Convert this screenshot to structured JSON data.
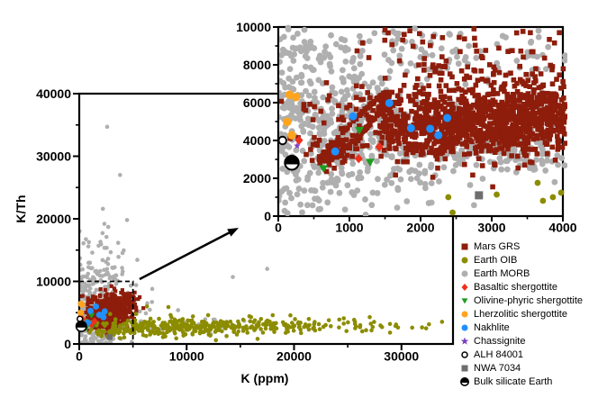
{
  "figure": {
    "legend": {
      "items": [
        {
          "label": "Mars GRS",
          "marker": "square",
          "color": "#8E1D0B"
        },
        {
          "label": "Earth OIB",
          "marker": "circle",
          "color": "#8C8C00"
        },
        {
          "label": "Earth MORB",
          "marker": "circle",
          "color": "#AFAFAF"
        },
        {
          "label": "Basaltic shergottite",
          "marker": "diamond",
          "color": "#ED301C"
        },
        {
          "label": "Olivine-phyric shergottite",
          "marker": "triangle-down",
          "color": "#1E9C20"
        },
        {
          "label": "Lherzolitic shergottite",
          "marker": "circle",
          "color": "#FFA41E"
        },
        {
          "label": "Nakhlite",
          "marker": "circle",
          "color": "#1E90FF"
        },
        {
          "label": "Chassignite",
          "marker": "star",
          "color": "#7C3FC4"
        },
        {
          "label": "ALH 84001",
          "marker": "open-circle",
          "color": "#000000"
        },
        {
          "label": "NWA 7034",
          "marker": "square",
          "color": "#6E6E6E"
        },
        {
          "label": "Bulk silicate Earth",
          "marker": "half-circle",
          "color": "#000000"
        }
      ]
    }
  },
  "chart_data": {
    "type": "scatter",
    "seed": 20240613,
    "cluster_format": "[n, cx, cy, sigma_x, sigma_y] gaussian cloud in data units",
    "ring_format": "[n, cx, cy, A, B, phase, jitter] tilted ellipse ring in data units",
    "panels": {
      "main": {
        "xlabel": "K (ppm)",
        "ylabel": "K/Th",
        "xlim": [
          0,
          34800
        ],
        "ylim": [
          0,
          40000
        ],
        "x_ticks": [
          0,
          10000,
          20000,
          30000
        ],
        "y_ticks": [
          0,
          10000,
          20000,
          30000,
          40000
        ],
        "x_minor_step": 5000,
        "y_minor_step": 5000,
        "zoom_box": {
          "x": [
            0,
            5000
          ],
          "y": [
            0,
            10000
          ]
        }
      },
      "inset": {
        "xlabel": "",
        "ylabel": "",
        "xlim": [
          0,
          4000
        ],
        "ylim": [
          0,
          10000
        ],
        "x_ticks": [
          0,
          1000,
          2000,
          3000,
          4000
        ],
        "y_ticks": [
          0,
          2000,
          4000,
          6000,
          8000,
          10000
        ],
        "x_minor_step": 500,
        "y_minor_step": 1000
      }
    },
    "series": [
      {
        "name": "Earth MORB",
        "marker": "circle",
        "color": "#AFAFAF",
        "layer": "cloud",
        "main": {
          "size": 4.6,
          "clusters": [
            [
              300,
              1500,
              4200,
              1150,
              2600
            ],
            [
              90,
              1700,
              10500,
              1200,
              2200
            ],
            [
              18,
              2400,
              15800,
              1400,
              1200
            ],
            [
              30,
              8500,
              2900,
              3800,
              700
            ],
            [
              12,
              4800,
              6500,
              1500,
              1500
            ]
          ],
          "points": [
            [
              2600,
              34700
            ],
            [
              3800,
              27000
            ],
            [
              2200,
              21600
            ],
            [
              4450,
              19800
            ],
            [
              2700,
              18700
            ],
            [
              14300,
              10700
            ],
            [
              17500,
              12000
            ],
            [
              6800,
              8800
            ],
            [
              5300,
              9400
            ],
            [
              6200,
              4900
            ],
            [
              9200,
              5400
            ],
            [
              12500,
              3900
            ]
          ]
        },
        "inset": {
          "size": 6.8,
          "clusters": [
            [
              400,
              850,
              4800,
              620,
              1750
            ],
            [
              130,
              2000,
              3900,
              850,
              950
            ],
            [
              70,
              2950,
              3400,
              650,
              650
            ],
            [
              45,
              3650,
              3300,
              350,
              700
            ],
            [
              55,
              1100,
              8700,
              650,
              750
            ],
            [
              45,
              2500,
              8300,
              800,
              800
            ],
            [
              25,
              450,
              1100,
              350,
              650
            ],
            [
              25,
              1500,
              1400,
              550,
              550
            ],
            [
              20,
              3300,
              8800,
              500,
              600
            ],
            [
              18,
              350,
              8800,
              280,
              700
            ]
          ],
          "points": []
        }
      },
      {
        "name": "Mars GRS",
        "marker": "square",
        "color": "#8E1D0B",
        "layer": "cloud",
        "main": {
          "size": 4.2,
          "clusters": [
            [
              420,
              3000,
              5600,
              1050,
              1250
            ],
            [
              160,
              2100,
              4300,
              650,
              900
            ],
            [
              60,
              4200,
              6500,
              700,
              900
            ]
          ],
          "points": []
        },
        "inset": {
          "size": 5.6,
          "clusters": [
            [
              800,
              2700,
              5000,
              850,
              1000
            ],
            [
              260,
              3500,
              5300,
              450,
              850
            ],
            [
              120,
              2000,
              4500,
              400,
              700
            ],
            [
              60,
              2700,
              7800,
              800,
              600
            ],
            [
              25,
              2500,
              9300,
              700,
              400
            ],
            [
              60,
              750,
              3400,
              160,
              420
            ]
          ],
          "ring": [
            150,
            1120,
            4750,
            430,
            1700,
            1.25,
            0.22
          ],
          "points": [
            [
              3150,
              3570
            ],
            [
              280,
              4150
            ],
            [
              3950,
              9700
            ],
            [
              2750,
              9900
            ],
            [
              1850,
              9800
            ]
          ]
        }
      },
      {
        "name": "Earth OIB",
        "marker": "circle",
        "color": "#8C8C00",
        "layer": "cloud",
        "main": {
          "size": 4.6,
          "clusters": [
            [
              260,
              9500,
              2800,
              4200,
              650
            ],
            [
              80,
              18500,
              2900,
              3000,
              600
            ],
            [
              30,
              26000,
              2900,
              2800,
              500
            ],
            [
              45,
              4000,
              2000,
              1600,
              500
            ]
          ],
          "points": [
            [
              6300,
              6000
            ],
            [
              8300,
              5900
            ],
            [
              5300,
              4800
            ],
            [
              31000,
              2600
            ],
            [
              32300,
              2500
            ],
            [
              29500,
              3100
            ],
            [
              12000,
              4600
            ],
            [
              16000,
              4300
            ]
          ]
        },
        "inset": {
          "size": 6.8,
          "points": [
            [
              2390,
              1000
            ],
            [
              2450,
              190
            ],
            [
              3070,
              1140
            ],
            [
              3645,
              1760
            ],
            [
              3720,
              810
            ],
            [
              3860,
              1000
            ],
            [
              3975,
              1240
            ]
          ]
        }
      },
      {
        "name": "NWA 7034",
        "marker": "square",
        "color": "#6E6E6E",
        "layer": "sample",
        "main": {
          "size": 6.5,
          "points": [
            [
              2820,
              1100
            ]
          ]
        },
        "inset": {
          "size": 9,
          "points": [
            [
              2820,
              1100
            ]
          ]
        }
      },
      {
        "name": "Chassignite",
        "marker": "star",
        "color": "#7C3FC4",
        "layer": "sample",
        "main": {
          "size": 7,
          "points": [
            [
              265,
              3720
            ]
          ]
        },
        "inset": {
          "size": 8,
          "points": [
            [
              265,
              3720
            ]
          ]
        }
      },
      {
        "name": "Lherzolitic shergottite",
        "marker": "circle",
        "color": "#FFA41E",
        "layer": "sample",
        "main": {
          "size": 7,
          "points": [
            [
              160,
              6420
            ],
            [
              250,
              6300
            ],
            [
              125,
              4980
            ],
            [
              190,
              4280
            ]
          ]
        },
        "inset": {
          "size": 9.5,
          "points": [
            [
              160,
              6420
            ],
            [
              250,
              6300
            ],
            [
              125,
              4980
            ],
            [
              190,
              4280
            ]
          ]
        }
      },
      {
        "name": "Olivine-phyric shergottite",
        "marker": "triangle-down",
        "color": "#1E9C20",
        "layer": "sample",
        "main": {
          "size": 7.5,
          "points": [
            [
              635,
              2510
            ],
            [
              1140,
              4540
            ],
            [
              1290,
              2850
            ]
          ]
        },
        "inset": {
          "size": 10,
          "points": [
            [
              635,
              2510
            ],
            [
              1140,
              4540
            ],
            [
              1290,
              2850
            ]
          ]
        }
      },
      {
        "name": "Basaltic shergottite",
        "marker": "diamond",
        "color": "#ED301C",
        "layer": "sample",
        "main": {
          "size": 7,
          "points": [
            [
              292,
              4010
            ],
            [
              1130,
              3040
            ],
            [
              1420,
              3660
            ]
          ]
        },
        "inset": {
          "size": 9,
          "points": [
            [
              292,
              4010
            ],
            [
              1130,
              3040
            ],
            [
              1420,
              3660
            ]
          ]
        }
      },
      {
        "name": "Nakhlite",
        "marker": "circle",
        "color": "#1E90FF",
        "layer": "sample",
        "main": {
          "size": 7,
          "points": [
            [
              800,
              3420
            ],
            [
              1050,
              5280
            ],
            [
              1560,
              5980
            ],
            [
              1865,
              4650
            ],
            [
              2135,
              4620
            ],
            [
              2250,
              4280
            ],
            [
              2375,
              5190
            ]
          ]
        },
        "inset": {
          "size": 9,
          "points": [
            [
              800,
              3420
            ],
            [
              1050,
              5280
            ],
            [
              1560,
              5980
            ],
            [
              1865,
              4650
            ],
            [
              2135,
              4620
            ],
            [
              2250,
              4280
            ],
            [
              2375,
              5190
            ]
          ]
        }
      },
      {
        "name": "ALH 84001",
        "marker": "open-circle",
        "color": "#000000",
        "layer": "sample",
        "main": {
          "size": 7,
          "points": [
            [
              60,
              4000
            ]
          ]
        },
        "inset": {
          "size": 9.5,
          "points": [
            [
              60,
              4000
            ]
          ]
        }
      },
      {
        "name": "Bulk silicate Earth",
        "marker": "half-circle",
        "color": "#000000",
        "layer": "sample",
        "main": {
          "size": 13,
          "points": [
            [
              190,
              2820
            ]
          ]
        },
        "inset": {
          "size": 17,
          "points": [
            [
              190,
              2820
            ]
          ]
        }
      }
    ]
  }
}
